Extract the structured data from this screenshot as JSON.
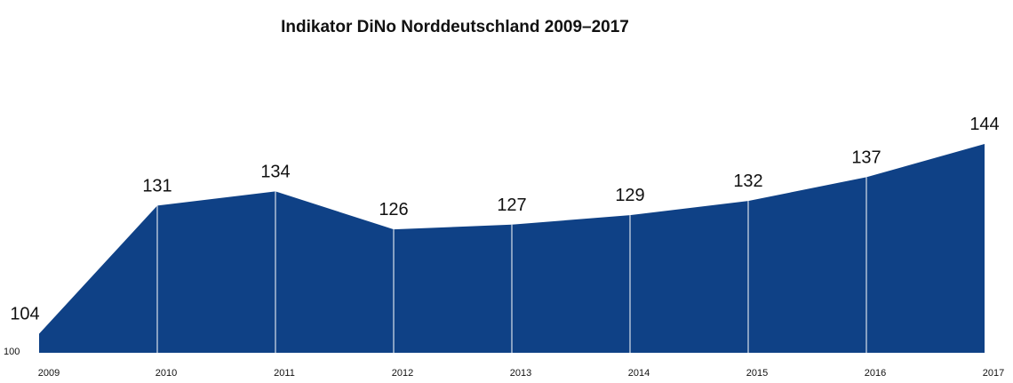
{
  "chart_data": {
    "type": "area",
    "title": "Indikator DiNo Norddeutschland 2009–2017",
    "x": [
      "2009",
      "2010",
      "2011",
      "2012",
      "2013",
      "2014",
      "2015",
      "2016",
      "2017"
    ],
    "values": [
      104,
      131,
      134,
      126,
      127,
      129,
      132,
      137,
      144
    ],
    "baseline_label": "100",
    "ylim": [
      100,
      144
    ],
    "grid": false,
    "legend": "none",
    "fill_color": "#0f4186",
    "separator_color": "#ffffff"
  }
}
